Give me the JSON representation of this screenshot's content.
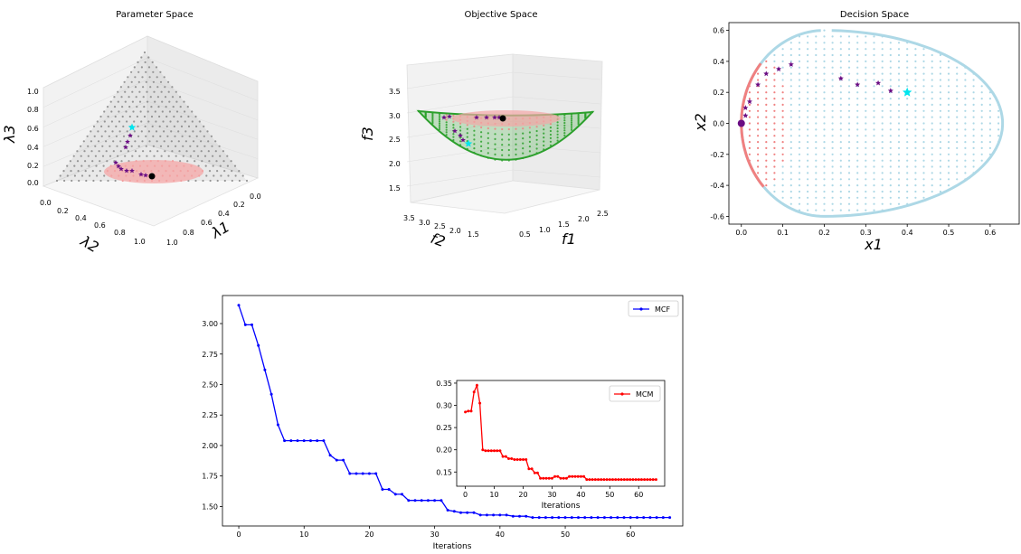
{
  "chart_data": [
    {
      "type": "scatter",
      "title": "Parameter Space",
      "xlabel": "λ1",
      "ylabel": "λ2",
      "zlabel": "λ3",
      "x_ticks": [
        "0.0",
        "0.2",
        "0.4",
        "0.6",
        "0.8",
        "1.0"
      ],
      "y_ticks": [
        "0.0",
        "0.2",
        "0.4",
        "0.6",
        "0.8",
        "1.0"
      ],
      "z_ticks": [
        "0.0",
        "0.2",
        "0.4",
        "0.6",
        "0.8",
        "1.0"
      ],
      "colors": {
        "grid_points": "#808080",
        "region": "#f4a6a6",
        "path": "#6a0d83",
        "start": "#00e5ee",
        "end": "#000000"
      }
    },
    {
      "type": "scatter",
      "title": "Objective Space",
      "xlabel": "f1",
      "ylabel": "f2",
      "zlabel": "f3",
      "x_ticks": [
        "0.5",
        "1.0",
        "1.5",
        "2.0",
        "2.5"
      ],
      "y_ticks": [
        "1.5",
        "2.0",
        "2.5",
        "3.0",
        "3.5"
      ],
      "z_ticks": [
        "1.5",
        "2.0",
        "2.5",
        "3.0",
        "3.5"
      ],
      "colors": {
        "surface": "#2ca02c",
        "region": "#f4a6a6",
        "path": "#6a0d83",
        "start": "#00e5ee",
        "end": "#000000"
      }
    },
    {
      "type": "scatter",
      "title": "Decision Space",
      "xlabel": "x1",
      "ylabel": "x2",
      "xlim": [
        -0.03,
        0.67
      ],
      "ylim": [
        -0.65,
        0.65
      ],
      "x_ticks": [
        "0.0",
        "0.1",
        "0.2",
        "0.3",
        "0.4",
        "0.5",
        "0.6"
      ],
      "y_ticks": [
        "-0.6",
        "-0.4",
        "-0.2",
        "0.0",
        "0.2",
        "0.4",
        "0.6"
      ],
      "path_points": [
        [
          0.02,
          0.14
        ],
        [
          0.04,
          0.25
        ],
        [
          0.06,
          0.32
        ],
        [
          0.09,
          0.35
        ],
        [
          0.12,
          0.38
        ],
        [
          0.24,
          0.29
        ],
        [
          0.28,
          0.25
        ],
        [
          0.33,
          0.26
        ],
        [
          0.36,
          0.21
        ],
        [
          0.01,
          0.1
        ],
        [
          0.01,
          0.05
        ]
      ],
      "start_point": [
        0.4,
        0.2
      ],
      "end_point": [
        0.0,
        0.0
      ],
      "colors": {
        "feasible": "#add8e6",
        "region": "#f08080",
        "path": "#6a0d83",
        "start": "#00e5ee",
        "end": "#6a0d83"
      }
    },
    {
      "type": "line",
      "xlabel": "Iterations",
      "ylabel": "",
      "xlim": [
        -2.5,
        68
      ],
      "ylim": [
        1.34,
        3.23
      ],
      "x_ticks": [
        0,
        10,
        20,
        30,
        40,
        50,
        60
      ],
      "y_ticks": [
        "1.50",
        "1.75",
        "2.00",
        "2.25",
        "2.50",
        "2.75",
        "3.00"
      ],
      "legend_position": "top-right",
      "series": [
        {
          "name": "MCF",
          "color": "#0000ff",
          "x": [
            0,
            1,
            2,
            3,
            4,
            5,
            6,
            7,
            8,
            9,
            10,
            11,
            12,
            13,
            14,
            15,
            16,
            17,
            18,
            19,
            20,
            21,
            22,
            23,
            24,
            25,
            26,
            27,
            28,
            29,
            30,
            31,
            32,
            33,
            34,
            35,
            36,
            37,
            38,
            39,
            40,
            41,
            42,
            43,
            44,
            45,
            46,
            47,
            48,
            49,
            50,
            51,
            52,
            53,
            54,
            55,
            56,
            57,
            58,
            59,
            60,
            61,
            62,
            63,
            64,
            65,
            66
          ],
          "values": [
            3.15,
            2.99,
            2.99,
            2.82,
            2.62,
            2.42,
            2.17,
            2.04,
            2.04,
            2.04,
            2.04,
            2.04,
            2.04,
            2.04,
            1.92,
            1.88,
            1.88,
            1.77,
            1.77,
            1.77,
            1.77,
            1.77,
            1.64,
            1.64,
            1.6,
            1.6,
            1.55,
            1.55,
            1.55,
            1.55,
            1.55,
            1.55,
            1.47,
            1.46,
            1.45,
            1.45,
            1.45,
            1.43,
            1.43,
            1.43,
            1.43,
            1.43,
            1.42,
            1.42,
            1.42,
            1.41,
            1.41,
            1.41,
            1.41,
            1.41,
            1.41,
            1.41,
            1.41,
            1.41,
            1.41,
            1.41,
            1.41,
            1.41,
            1.41,
            1.41,
            1.41,
            1.41,
            1.41,
            1.41,
            1.41,
            1.41,
            1.41
          ]
        }
      ]
    },
    {
      "type": "line",
      "xlabel": "Iterations",
      "ylabel": "",
      "xlim": [
        -3,
        69
      ],
      "ylim": [
        0.118,
        0.356
      ],
      "x_ticks": [
        0,
        10,
        20,
        30,
        40,
        50,
        60
      ],
      "y_ticks": [
        "0.15",
        "0.20",
        "0.25",
        "0.30",
        "0.35"
      ],
      "legend_position": "top-right",
      "series": [
        {
          "name": "MCM",
          "color": "#ff0000",
          "x": [
            0,
            1,
            2,
            3,
            4,
            5,
            6,
            7,
            8,
            9,
            10,
            11,
            12,
            13,
            14,
            15,
            16,
            17,
            18,
            19,
            20,
            21,
            22,
            23,
            24,
            25,
            26,
            27,
            28,
            29,
            30,
            31,
            32,
            33,
            34,
            35,
            36,
            37,
            38,
            39,
            40,
            41,
            42,
            43,
            44,
            45,
            46,
            47,
            48,
            49,
            50,
            51,
            52,
            53,
            54,
            55,
            56,
            57,
            58,
            59,
            60,
            61,
            62,
            63,
            64,
            65,
            66
          ],
          "values": [
            0.285,
            0.287,
            0.287,
            0.33,
            0.345,
            0.305,
            0.2,
            0.198,
            0.198,
            0.198,
            0.198,
            0.198,
            0.198,
            0.185,
            0.185,
            0.18,
            0.18,
            0.178,
            0.178,
            0.178,
            0.178,
            0.178,
            0.157,
            0.157,
            0.148,
            0.148,
            0.136,
            0.136,
            0.136,
            0.136,
            0.136,
            0.14,
            0.14,
            0.136,
            0.136,
            0.136,
            0.14,
            0.14,
            0.14,
            0.14,
            0.14,
            0.14,
            0.133,
            0.133,
            0.133,
            0.133,
            0.133,
            0.133,
            0.133,
            0.133,
            0.133,
            0.133,
            0.133,
            0.133,
            0.133,
            0.133,
            0.133,
            0.133,
            0.133,
            0.133,
            0.133,
            0.133,
            0.133,
            0.133,
            0.133,
            0.133,
            0.133
          ]
        }
      ]
    }
  ]
}
